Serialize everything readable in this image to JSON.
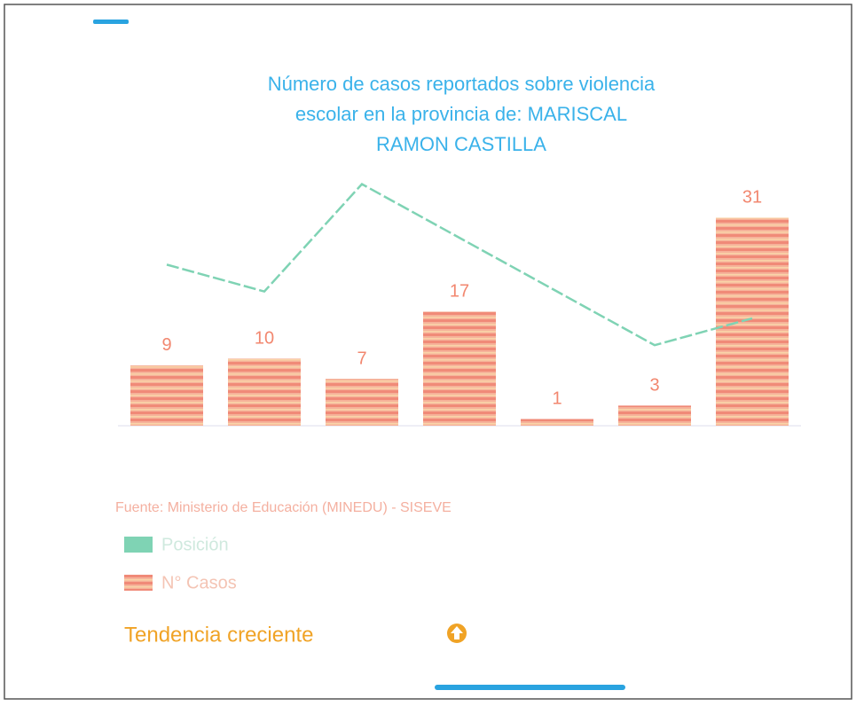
{
  "chart_data": {
    "type": "bar",
    "title": "Número de casos reportados sobre violencia escolar en la provincia de: MARISCAL RAMON CASTILLA",
    "categories": [
      null,
      null,
      null,
      null,
      null,
      null,
      null
    ],
    "series": [
      {
        "name": "Posición",
        "type": "line",
        "color": "#7fd3b4",
        "values": [
          24,
          20,
          36,
          28,
          20,
          12,
          16
        ]
      },
      {
        "name": "N° Casos",
        "type": "bar",
        "color": "#f2876f",
        "values": [
          9,
          10,
          7,
          17,
          1,
          3,
          31
        ]
      }
    ],
    "ylim": [
      0,
      37
    ],
    "source": "Fuente: Ministerio de Educación (MINEDU) - SISEVE",
    "trend": "Tendencia creciente"
  }
}
